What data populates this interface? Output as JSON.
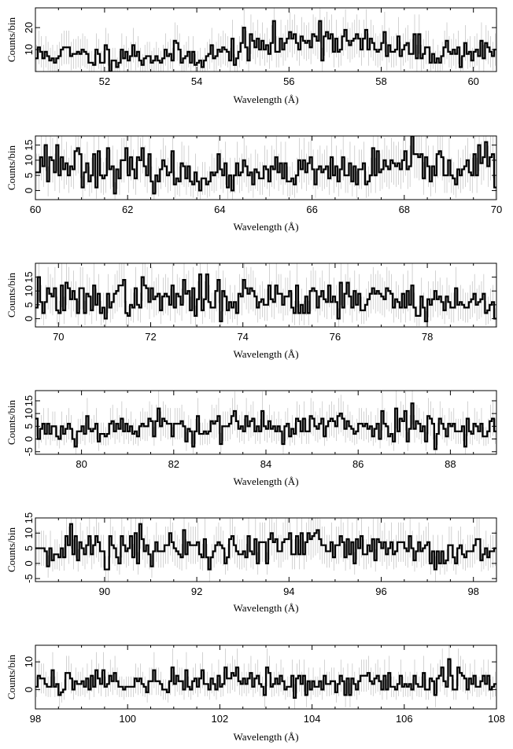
{
  "chart_data": [
    {
      "type": "line",
      "xlabel": "Wavelength (Å)",
      "ylabel": "Counts/bin",
      "xlim": [
        50.5,
        60.5
      ],
      "ylim": [
        0,
        29
      ],
      "xticks": [
        52,
        54,
        56,
        58,
        60
      ],
      "yticks": [
        10,
        20
      ],
      "bin_width": 0.05,
      "anchors": [
        [
          50.5,
          7
        ],
        [
          51.0,
          8
        ],
        [
          51.5,
          7
        ],
        [
          52.0,
          7
        ],
        [
          52.5,
          8
        ],
        [
          53.0,
          7
        ],
        [
          53.5,
          7
        ],
        [
          54.0,
          7
        ],
        [
          54.5,
          8
        ],
        [
          55.0,
          11
        ],
        [
          55.5,
          12
        ],
        [
          56.0,
          13
        ],
        [
          56.5,
          17
        ],
        [
          57.0,
          15
        ],
        [
          57.5,
          13
        ],
        [
          58.0,
          11
        ],
        [
          58.5,
          10
        ],
        [
          59.0,
          9
        ],
        [
          59.5,
          9
        ],
        [
          60.0,
          9
        ],
        [
          60.5,
          9
        ]
      ],
      "noise_amp": 0.45,
      "seed": 11
    },
    {
      "type": "line",
      "xlabel": "Wavelength (Å)",
      "ylabel": "Counts/bin",
      "xlim": [
        60,
        70
      ],
      "ylim": [
        -3,
        18
      ],
      "xticks": [
        60,
        62,
        64,
        66,
        68,
        70
      ],
      "yticks": [
        0,
        5,
        10,
        15
      ],
      "bin_width": 0.05,
      "anchors": [
        [
          60,
          10
        ],
        [
          61,
          9
        ],
        [
          62,
          7
        ],
        [
          63,
          6
        ],
        [
          64,
          5
        ],
        [
          65,
          5
        ],
        [
          66,
          6
        ],
        [
          67,
          6
        ],
        [
          68,
          8
        ],
        [
          69,
          8
        ],
        [
          70,
          9
        ]
      ],
      "noise_amp": 0.6,
      "seed": 23
    },
    {
      "type": "line",
      "xlabel": "Wavelength (Å)",
      "ylabel": "Counts/bin",
      "xlim": [
        69.5,
        79.5
      ],
      "ylim": [
        -3,
        20
      ],
      "xticks": [
        70,
        72,
        74,
        76,
        78
      ],
      "yticks": [
        0,
        5,
        10,
        15
      ],
      "bin_width": 0.05,
      "anchors": [
        [
          69.5,
          8
        ],
        [
          70.5,
          6
        ],
        [
          71.5,
          8
        ],
        [
          72.5,
          7
        ],
        [
          73.5,
          8
        ],
        [
          74.5,
          8
        ],
        [
          75.5,
          8
        ],
        [
          76.5,
          8
        ],
        [
          77.5,
          7
        ],
        [
          78.5,
          6
        ],
        [
          79.5,
          5
        ]
      ],
      "noise_amp": 0.7,
      "seed": 37
    },
    {
      "type": "line",
      "xlabel": "Wavelength (Å)",
      "ylabel": "Counts/bin",
      "xlim": [
        79,
        89
      ],
      "ylim": [
        -6,
        19
      ],
      "xticks": [
        80,
        82,
        84,
        86,
        88
      ],
      "yticks": [
        -5,
        0,
        5,
        10,
        15
      ],
      "bin_width": 0.05,
      "anchors": [
        [
          79,
          4
        ],
        [
          80,
          4
        ],
        [
          81,
          5
        ],
        [
          82,
          5
        ],
        [
          83,
          5
        ],
        [
          84,
          5
        ],
        [
          85,
          5
        ],
        [
          86,
          5
        ],
        [
          87,
          6
        ],
        [
          88,
          5
        ],
        [
          89,
          4
        ]
      ],
      "noise_amp": 0.85,
      "seed": 53
    },
    {
      "type": "line",
      "xlabel": "Wavelength (Å)",
      "ylabel": "Counts/bin",
      "xlim": [
        88.5,
        98.5
      ],
      "ylim": [
        -6,
        15
      ],
      "xticks": [
        90,
        92,
        94,
        96,
        98
      ],
      "yticks": [
        -5,
        0,
        5,
        10,
        15
      ],
      "bin_width": 0.05,
      "anchors": [
        [
          88.5,
          6
        ],
        [
          89.5,
          5
        ],
        [
          90.5,
          5
        ],
        [
          91.5,
          5
        ],
        [
          92.5,
          4
        ],
        [
          93.5,
          5
        ],
        [
          94.5,
          6
        ],
        [
          95.5,
          5
        ],
        [
          96.5,
          5
        ],
        [
          97.5,
          4
        ],
        [
          98.5,
          4
        ]
      ],
      "noise_amp": 0.9,
      "seed": 71
    },
    {
      "type": "line",
      "xlabel": "Wavelength (Å)",
      "ylabel": "Counts/bin",
      "xlim": [
        98,
        108
      ],
      "ylim": [
        -7,
        16
      ],
      "xticks": [
        98,
        100,
        102,
        104,
        106,
        108
      ],
      "yticks": [
        0,
        10
      ],
      "bin_width": 0.05,
      "anchors": [
        [
          98,
          3
        ],
        [
          99,
          3
        ],
        [
          100,
          3
        ],
        [
          101,
          3
        ],
        [
          102,
          3
        ],
        [
          103,
          3
        ],
        [
          104,
          3
        ],
        [
          105,
          3
        ],
        [
          106,
          3
        ],
        [
          107,
          3
        ],
        [
          108,
          3
        ]
      ],
      "noise_amp": 1.0,
      "seed": 89
    }
  ]
}
